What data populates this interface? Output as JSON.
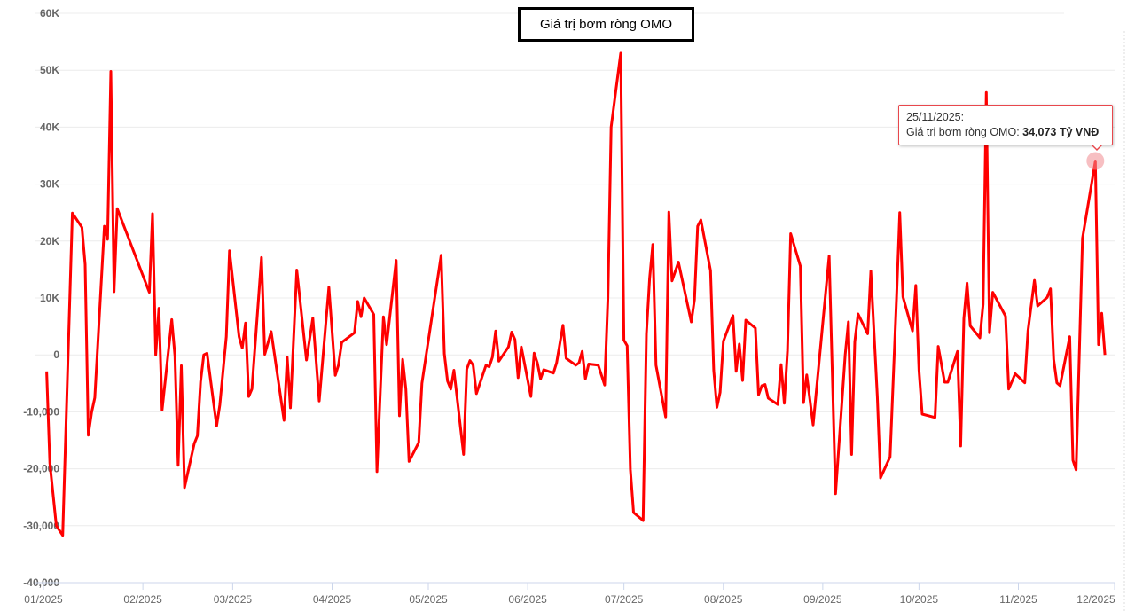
{
  "title": "Giá trị bơm ròng OMO",
  "tooltip": {
    "date": "25/11/2025:",
    "series_label": "Giá trị bơm ròng OMO:",
    "value": "34,073 Tỷ VNĐ"
  },
  "colors": {
    "line": "#ff0000",
    "crosshair": "#2a6fb5",
    "tooltip_border": "#e8474c",
    "highlight": "#f08a8f"
  },
  "chart_data": {
    "type": "line",
    "title": "Giá trị bơm ròng OMO",
    "unit": "Tỷ VNĐ",
    "xlabel": "",
    "ylabel": "",
    "ylim": [
      -40000,
      60000
    ],
    "xlim": [
      "2025-01-01",
      "2025-12-01"
    ],
    "grid": true,
    "y_ticks": [
      {
        "value": 60000,
        "label": "60K"
      },
      {
        "value": 50000,
        "label": "50K"
      },
      {
        "value": 40000,
        "label": "40K"
      },
      {
        "value": 30000,
        "label": "30K"
      },
      {
        "value": 20000,
        "label": "20K"
      },
      {
        "value": 10000,
        "label": "10K"
      },
      {
        "value": 0,
        "label": "0"
      },
      {
        "value": -10000,
        "label": "-10,000"
      },
      {
        "value": -20000,
        "label": "-20,000"
      },
      {
        "value": -30000,
        "label": "-30,000"
      },
      {
        "value": -40000,
        "label": "-40,000"
      }
    ],
    "x_ticks": [
      {
        "date": "2025-01-01",
        "label": "01/2025"
      },
      {
        "date": "2025-02-01",
        "label": "02/2025"
      },
      {
        "date": "2025-03-01",
        "label": "03/2025"
      },
      {
        "date": "2025-04-01",
        "label": "04/2025"
      },
      {
        "date": "2025-05-01",
        "label": "05/2025"
      },
      {
        "date": "2025-06-01",
        "label": "06/2025"
      },
      {
        "date": "2025-07-01",
        "label": "07/2025"
      },
      {
        "date": "2025-08-01",
        "label": "08/2025"
      },
      {
        "date": "2025-09-01",
        "label": "09/2025"
      },
      {
        "date": "2025-10-01",
        "label": "10/2025"
      },
      {
        "date": "2025-11-01",
        "label": "11/2025"
      },
      {
        "date": "2025-12-01",
        "label": "12/2025"
      }
    ],
    "highlight": {
      "date": "2025-11-25",
      "value": 34073
    },
    "series": [
      {
        "name": "Giá trị bơm ròng OMO",
        "points": [
          [
            "2025-01-02",
            -2900
          ],
          [
            "2025-01-03",
            -19000
          ],
          [
            "2025-01-05",
            -30000
          ],
          [
            "2025-01-07",
            -31700
          ],
          [
            "2025-01-10",
            24900
          ],
          [
            "2025-01-13",
            22400
          ],
          [
            "2025-01-14",
            15900
          ],
          [
            "2025-01-15",
            -14100
          ],
          [
            "2025-01-16",
            -10100
          ],
          [
            "2025-01-17",
            -7500
          ],
          [
            "2025-01-20",
            22600
          ],
          [
            "2025-01-21",
            20300
          ],
          [
            "2025-01-22",
            49800
          ],
          [
            "2025-01-23",
            11100
          ],
          [
            "2025-01-24",
            25700
          ],
          [
            "2025-02-03",
            11000
          ],
          [
            "2025-02-04",
            24800
          ],
          [
            "2025-02-05",
            0
          ],
          [
            "2025-02-06",
            8200
          ],
          [
            "2025-02-07",
            -9700
          ],
          [
            "2025-02-10",
            6200
          ],
          [
            "2025-02-11",
            -200
          ],
          [
            "2025-02-12",
            -19400
          ],
          [
            "2025-02-13",
            -1900
          ],
          [
            "2025-02-14",
            -23300
          ],
          [
            "2025-02-17",
            -15600
          ],
          [
            "2025-02-18",
            -14200
          ],
          [
            "2025-02-19",
            -4700
          ],
          [
            "2025-02-20",
            0
          ],
          [
            "2025-02-21",
            300
          ],
          [
            "2025-02-24",
            -12500
          ],
          [
            "2025-02-25",
            -8800
          ],
          [
            "2025-02-27",
            3200
          ],
          [
            "2025-02-28",
            18300
          ],
          [
            "2025-03-03",
            3200
          ],
          [
            "2025-03-04",
            1200
          ],
          [
            "2025-03-05",
            5600
          ],
          [
            "2025-03-06",
            -7300
          ],
          [
            "2025-03-07",
            -6000
          ],
          [
            "2025-03-10",
            17100
          ],
          [
            "2025-03-11",
            100
          ],
          [
            "2025-03-13",
            4100
          ],
          [
            "2025-03-17",
            -11500
          ],
          [
            "2025-03-18",
            -400
          ],
          [
            "2025-03-19",
            -9300
          ],
          [
            "2025-03-21",
            14900
          ],
          [
            "2025-03-24",
            -900
          ],
          [
            "2025-03-26",
            6500
          ],
          [
            "2025-03-28",
            -8100
          ],
          [
            "2025-03-31",
            11900
          ],
          [
            "2025-04-02",
            -3600
          ],
          [
            "2025-04-03",
            -1800
          ],
          [
            "2025-04-04",
            2200
          ],
          [
            "2025-04-08",
            3900
          ],
          [
            "2025-04-09",
            9400
          ],
          [
            "2025-04-10",
            6700
          ],
          [
            "2025-04-11",
            10000
          ],
          [
            "2025-04-14",
            7100
          ],
          [
            "2025-04-15",
            -20500
          ],
          [
            "2025-04-17",
            6700
          ],
          [
            "2025-04-18",
            1800
          ],
          [
            "2025-04-21",
            16600
          ],
          [
            "2025-04-22",
            -10700
          ],
          [
            "2025-04-23",
            -800
          ],
          [
            "2025-04-24",
            -6000
          ],
          [
            "2025-04-25",
            -18700
          ],
          [
            "2025-04-28",
            -15400
          ],
          [
            "2025-04-29",
            -5000
          ],
          [
            "2025-05-05",
            17500
          ],
          [
            "2025-05-06",
            200
          ],
          [
            "2025-05-07",
            -4600
          ],
          [
            "2025-05-08",
            -6000
          ],
          [
            "2025-05-09",
            -2700
          ],
          [
            "2025-05-12",
            -17500
          ],
          [
            "2025-05-13",
            -2500
          ],
          [
            "2025-05-14",
            -1000
          ],
          [
            "2025-05-15",
            -1800
          ],
          [
            "2025-05-16",
            -6800
          ],
          [
            "2025-05-19",
            -1800
          ],
          [
            "2025-05-20",
            -2100
          ],
          [
            "2025-05-21",
            -400
          ],
          [
            "2025-05-22",
            4200
          ],
          [
            "2025-05-23",
            -1100
          ],
          [
            "2025-05-26",
            1400
          ],
          [
            "2025-05-27",
            4000
          ],
          [
            "2025-05-28",
            2700
          ],
          [
            "2025-05-29",
            -4000
          ],
          [
            "2025-05-30",
            1400
          ],
          [
            "2025-06-02",
            -7300
          ],
          [
            "2025-06-03",
            300
          ],
          [
            "2025-06-04",
            -1400
          ],
          [
            "2025-06-05",
            -4200
          ],
          [
            "2025-06-06",
            -2600
          ],
          [
            "2025-06-09",
            -3200
          ],
          [
            "2025-06-10",
            -1400
          ],
          [
            "2025-06-12",
            5200
          ],
          [
            "2025-06-13",
            -600
          ],
          [
            "2025-06-16",
            -1800
          ],
          [
            "2025-06-17",
            -1400
          ],
          [
            "2025-06-18",
            600
          ],
          [
            "2025-06-19",
            -4200
          ],
          [
            "2025-06-20",
            -1600
          ],
          [
            "2025-06-23",
            -1800
          ],
          [
            "2025-06-25",
            -5300
          ],
          [
            "2025-06-26",
            10100
          ],
          [
            "2025-06-27",
            40000
          ],
          [
            "2025-06-30",
            53000
          ],
          [
            "2025-07-01",
            2600
          ],
          [
            "2025-07-02",
            1600
          ],
          [
            "2025-07-03",
            -20100
          ],
          [
            "2025-07-04",
            -27700
          ],
          [
            "2025-07-07",
            -29100
          ],
          [
            "2025-07-08",
            3700
          ],
          [
            "2025-07-09",
            13400
          ],
          [
            "2025-07-10",
            19400
          ],
          [
            "2025-07-11",
            -1800
          ],
          [
            "2025-07-14",
            -10900
          ],
          [
            "2025-07-15",
            25100
          ],
          [
            "2025-07-16",
            13000
          ],
          [
            "2025-07-18",
            16300
          ],
          [
            "2025-07-22",
            5800
          ],
          [
            "2025-07-23",
            9700
          ],
          [
            "2025-07-24",
            22600
          ],
          [
            "2025-07-25",
            23700
          ],
          [
            "2025-07-28",
            14800
          ],
          [
            "2025-07-29",
            -2700
          ],
          [
            "2025-07-30",
            -9200
          ],
          [
            "2025-07-31",
            -6600
          ],
          [
            "2025-08-01",
            2400
          ],
          [
            "2025-08-04",
            6900
          ],
          [
            "2025-08-05",
            -2900
          ],
          [
            "2025-08-06",
            1900
          ],
          [
            "2025-08-07",
            -4500
          ],
          [
            "2025-08-08",
            6100
          ],
          [
            "2025-08-11",
            4700
          ],
          [
            "2025-08-12",
            -7000
          ],
          [
            "2025-08-13",
            -5400
          ],
          [
            "2025-08-14",
            -5200
          ],
          [
            "2025-08-15",
            -7600
          ],
          [
            "2025-08-18",
            -8700
          ],
          [
            "2025-08-19",
            -1700
          ],
          [
            "2025-08-20",
            -8500
          ],
          [
            "2025-08-21",
            700
          ],
          [
            "2025-08-22",
            21300
          ],
          [
            "2025-08-25",
            15600
          ],
          [
            "2025-08-26",
            -8400
          ],
          [
            "2025-08-27",
            -3500
          ],
          [
            "2025-08-29",
            -12300
          ],
          [
            "2025-09-03",
            17400
          ],
          [
            "2025-09-05",
            -24400
          ],
          [
            "2025-09-08",
            100
          ],
          [
            "2025-09-09",
            5800
          ],
          [
            "2025-09-10",
            -17500
          ],
          [
            "2025-09-11",
            2300
          ],
          [
            "2025-09-12",
            7200
          ],
          [
            "2025-09-15",
            3700
          ],
          [
            "2025-09-16",
            14700
          ],
          [
            "2025-09-18",
            -7300
          ],
          [
            "2025-09-19",
            -21600
          ],
          [
            "2025-09-22",
            -17900
          ],
          [
            "2025-09-24",
            10100
          ],
          [
            "2025-09-25",
            25000
          ],
          [
            "2025-09-26",
            10200
          ],
          [
            "2025-09-29",
            4200
          ],
          [
            "2025-09-30",
            12200
          ],
          [
            "2025-10-01",
            -2700
          ],
          [
            "2025-10-02",
            -10400
          ],
          [
            "2025-10-06",
            -11000
          ],
          [
            "2025-10-07",
            1500
          ],
          [
            "2025-10-09",
            -4800
          ],
          [
            "2025-10-10",
            -4800
          ],
          [
            "2025-10-13",
            600
          ],
          [
            "2025-10-14",
            -16000
          ],
          [
            "2025-10-15",
            6400
          ],
          [
            "2025-10-16",
            12600
          ],
          [
            "2025-10-17",
            5100
          ],
          [
            "2025-10-20",
            3000
          ],
          [
            "2025-10-21",
            8900
          ],
          [
            "2025-10-22",
            46100
          ],
          [
            "2025-10-23",
            3900
          ],
          [
            "2025-10-24",
            11000
          ],
          [
            "2025-10-28",
            6800
          ],
          [
            "2025-10-29",
            -6000
          ],
          [
            "2025-10-31",
            -3300
          ],
          [
            "2025-11-03",
            -4900
          ],
          [
            "2025-11-04",
            4200
          ],
          [
            "2025-11-06",
            13100
          ],
          [
            "2025-11-07",
            8600
          ],
          [
            "2025-11-10",
            10100
          ],
          [
            "2025-11-11",
            11600
          ],
          [
            "2025-11-12",
            -800
          ],
          [
            "2025-11-13",
            -4900
          ],
          [
            "2025-11-14",
            -5400
          ],
          [
            "2025-11-17",
            3200
          ],
          [
            "2025-11-18",
            -18500
          ],
          [
            "2025-11-19",
            -20200
          ],
          [
            "2025-11-21",
            20500
          ],
          [
            "2025-11-25",
            34073
          ],
          [
            "2025-11-26",
            1800
          ],
          [
            "2025-11-27",
            7300
          ],
          [
            "2025-11-28",
            0
          ]
        ]
      }
    ]
  }
}
